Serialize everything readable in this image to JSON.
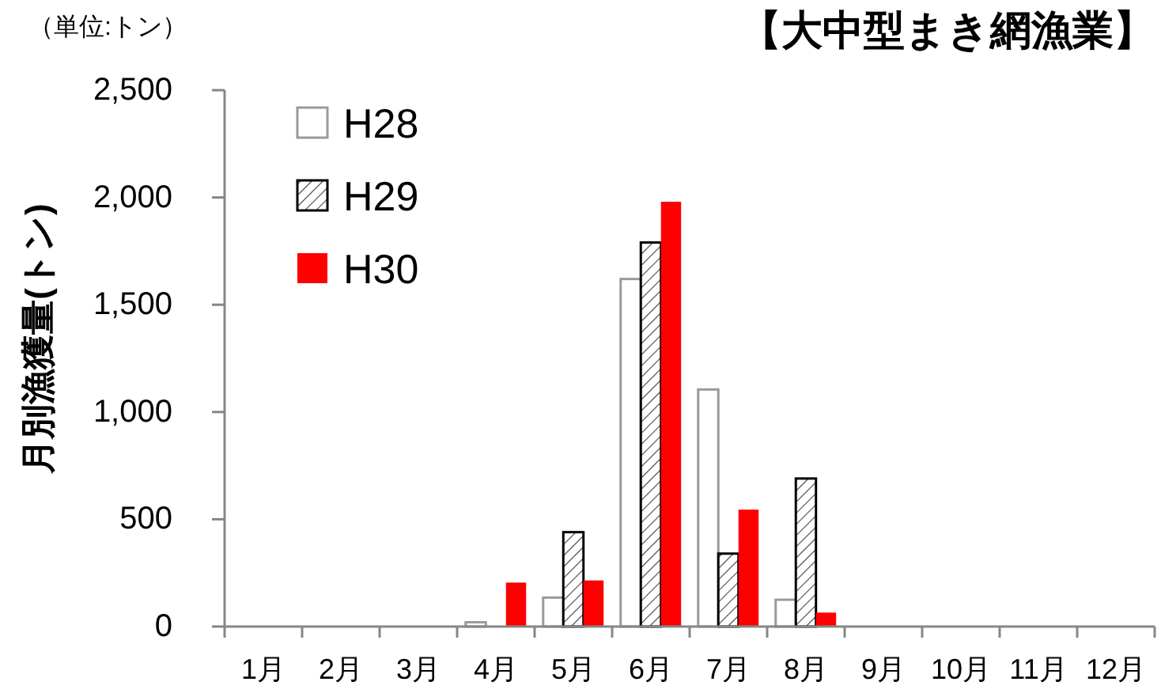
{
  "chart_data": {
    "type": "bar",
    "title": "【大中型まき網漁業】",
    "ylabel": "月別漁獲量(トン)",
    "annotations": [
      "（単位:トン）"
    ],
    "categories": [
      "1月",
      "2月",
      "3月",
      "4月",
      "5月",
      "6月",
      "7月",
      "8月",
      "9月",
      "10月",
      "11月",
      "12月"
    ],
    "series": [
      {
        "name": "H28",
        "color": "#ffffff",
        "values": [
          0,
          0,
          0,
          20,
          135,
          1620,
          1105,
          125,
          0,
          0,
          0,
          0
        ]
      },
      {
        "name": "H29",
        "color": "#000000",
        "values": [
          0,
          0,
          0,
          0,
          440,
          1790,
          340,
          690,
          0,
          0,
          0,
          0
        ]
      },
      {
        "name": "H30",
        "color": "#ff0000",
        "values": [
          0,
          0,
          0,
          205,
          215,
          1980,
          545,
          65,
          0,
          0,
          0,
          0
        ]
      }
    ],
    "ylim": [
      0,
      2500
    ],
    "yticks": [
      0,
      500,
      {
        "value": 1000,
        "label": "1,000"
      },
      {
        "value": 1500,
        "label": "1,500"
      },
      {
        "value": 2000,
        "label": "2,000"
      },
      {
        "value": 2500,
        "label": "2,500"
      }
    ],
    "grid": false,
    "legend": "top left"
  }
}
